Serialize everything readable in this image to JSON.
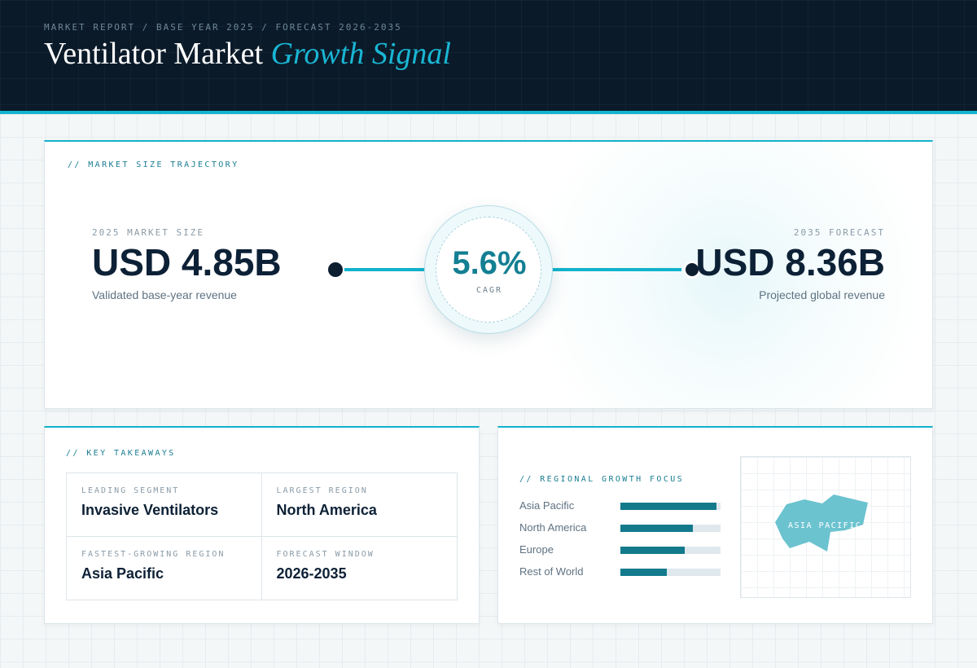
{
  "header": {
    "breadcrumb": "MARKET REPORT / BASE YEAR 2025 / FORECAST 2026-2035",
    "title_main": "Ventilator Market",
    "title_accent": "Growth Signal"
  },
  "trajectory": {
    "section_label": "// MARKET SIZE TRAJECTORY",
    "base": {
      "label": "2025 MARKET SIZE",
      "value": "USD 4.85B",
      "caption": "Validated base-year revenue"
    },
    "forecast": {
      "label": "2035 FORECAST",
      "value": "USD 8.36B",
      "caption": "Projected global revenue"
    },
    "cagr": {
      "value": "5.6%",
      "label": "CAGR"
    }
  },
  "takeaways": {
    "section_label": "// KEY TAKEAWAYS",
    "items": [
      {
        "label": "LEADING SEGMENT",
        "value": "Invasive Ventilators"
      },
      {
        "label": "LARGEST REGION",
        "value": "North America"
      },
      {
        "label": "FASTEST-GROWING REGION",
        "value": "Asia Pacific"
      },
      {
        "label": "FORECAST WINDOW",
        "value": "2026-2035"
      }
    ]
  },
  "regional": {
    "section_label": "// REGIONAL GROWTH FOCUS",
    "bars": [
      {
        "name": "Asia Pacific",
        "level": 0.96
      },
      {
        "name": "North America",
        "level": 0.72
      },
      {
        "name": "Europe",
        "level": 0.64
      },
      {
        "name": "Rest of World",
        "level": 0.46
      }
    ],
    "map_label": "ASIA PACIFIC"
  },
  "colors": {
    "accent": "#12b3cc",
    "bar_fill": "#137a8c",
    "header_bg": "#0a1a29",
    "map_shape": "#6cc3d0"
  }
}
